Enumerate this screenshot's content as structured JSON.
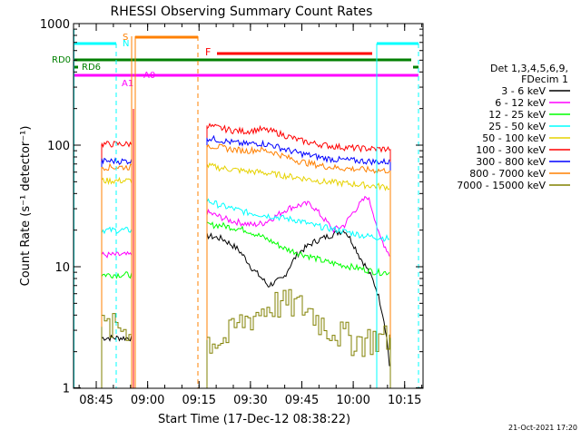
{
  "chart_data": {
    "type": "line",
    "title": "RHESSI Observing Summary Count Rates",
    "xlabel": "Start Time (17-Dec-12 08:38:22)",
    "ylabel": "Count Rate (s⁻¹ detector⁻¹)",
    "yscale": "log",
    "ylim": [
      1,
      1000
    ],
    "xlim_minutes_after_0838": [
      0,
      102
    ],
    "x_ticks": [
      "08:45",
      "09:00",
      "09:15",
      "09:30",
      "09:45",
      "10:00",
      "10:15"
    ],
    "y_ticks": [
      "1",
      "10",
      "100",
      "1000"
    ],
    "footer_date": "21-Oct-2021 17:20",
    "legend": {
      "header_lines": [
        "Det 1,3,4,5,6,9,",
        "FDecim 1"
      ],
      "placement": "right"
    },
    "series": [
      {
        "name": "3 - 6 keV",
        "color": "#000000",
        "seg1": 2.6,
        "seg2": [
          18,
          17,
          14,
          9.5,
          7,
          8,
          13,
          16,
          18,
          20,
          12,
          7,
          1.2
        ]
      },
      {
        "name": "6 - 12 keV",
        "color": "#ff00ff",
        "seg1": 12.5,
        "seg2": [
          28,
          26,
          24,
          23,
          22,
          23,
          26,
          30,
          32,
          33,
          26,
          20,
          22,
          30,
          38,
          18,
          12
        ]
      },
      {
        "name": "12 - 25 keV",
        "color": "#00ff00",
        "seg1": 8.6,
        "seg2": [
          22,
          22,
          21,
          20,
          18,
          16,
          14,
          13,
          12,
          11,
          10.5,
          10,
          9.5,
          9,
          9
        ]
      },
      {
        "name": "25 - 50 keV",
        "color": "#00ffff",
        "seg1": 20,
        "seg2": [
          35,
          32,
          30,
          28,
          27,
          26,
          25,
          24,
          22,
          21,
          20,
          19,
          18,
          17.5,
          17
        ]
      },
      {
        "name": "50 - 100 keV",
        "color": "#e6d200",
        "seg1": 51,
        "seg2": [
          68,
          65,
          63,
          61,
          60,
          58,
          56,
          54,
          52,
          50,
          49,
          48,
          47,
          46,
          45
        ]
      },
      {
        "name": "100 - 300 keV",
        "color": "#ff0000",
        "seg1": 102,
        "seg2": [
          145,
          138,
          132,
          130,
          135,
          130,
          120,
          110,
          104,
          100,
          97,
          95,
          94,
          93,
          93
        ]
      },
      {
        "name": "300 - 800 keV",
        "color": "#0000ff",
        "seg1": 74,
        "seg2": [
          115,
          110,
          105,
          102,
          104,
          100,
          92,
          86,
          82,
          78,
          76,
          75,
          74,
          73,
          73
        ]
      },
      {
        "name": "800 - 7000 keV",
        "color": "#ff8000",
        "seg1": 66,
        "seg2": [
          100,
          96,
          92,
          90,
          92,
          88,
          80,
          74,
          70,
          67,
          65,
          64,
          63,
          62,
          62
        ]
      },
      {
        "name": "7000 - 15000 keV",
        "color": "#808000",
        "seg1": 3.2,
        "seg2": [
          2.5,
          2.5,
          3.5,
          4.2,
          5,
          5,
          4.5,
          3.3,
          2.8,
          2.5,
          2.6,
          2.6
        ]
      }
    ],
    "flags": [
      {
        "label": "S",
        "color": "#ff8000"
      },
      {
        "label": "N",
        "color": "#00ffff"
      },
      {
        "label": "F",
        "color": "#ff0000"
      },
      {
        "label": "RD0",
        "color": "#008000"
      },
      {
        "label": "RD6",
        "color": "#008000"
      },
      {
        "label": "A1",
        "color": "#ff00ff"
      },
      {
        "label": "A0",
        "color": "#ff00ff"
      }
    ]
  }
}
